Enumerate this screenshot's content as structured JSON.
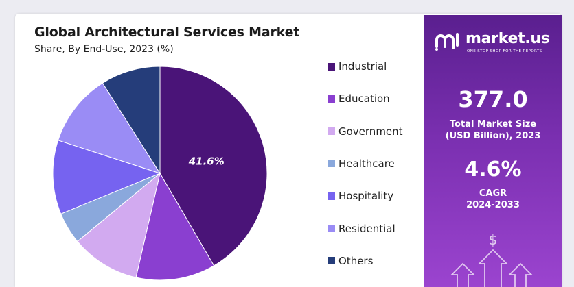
{
  "chart_data": {
    "type": "pie",
    "title": "Global Architectural Services Market",
    "subtitle": "Share, By End-Use, 2023 (%)",
    "categories": [
      "Industrial",
      "Education",
      "Government",
      "Healthcare",
      "Hospitality",
      "Residential",
      "Others"
    ],
    "values": [
      41.6,
      12.0,
      10.4,
      4.8,
      11.2,
      11.0,
      9.0
    ],
    "colors": [
      "#4a1478",
      "#8a3fd0",
      "#d2aaf0",
      "#8aa8dc",
      "#7663f0",
      "#9a8cf5",
      "#253d7a"
    ],
    "data_labels": [
      "41.6%",
      "",
      "",
      "",
      "",
      "",
      ""
    ],
    "legend_position": "right"
  },
  "panel": {
    "brand": "market.us",
    "tagline": "ONE STOP SHOP FOR THE REPORTS",
    "market_size_value": "377.0",
    "market_size_label_line1": "Total Market Size",
    "market_size_label_line2": "(USD Billion), 2023",
    "cagr_value": "4.6%",
    "cagr_label_line1": "CAGR",
    "cagr_label_line2": "2024-2033",
    "dollar_symbol": "$"
  }
}
